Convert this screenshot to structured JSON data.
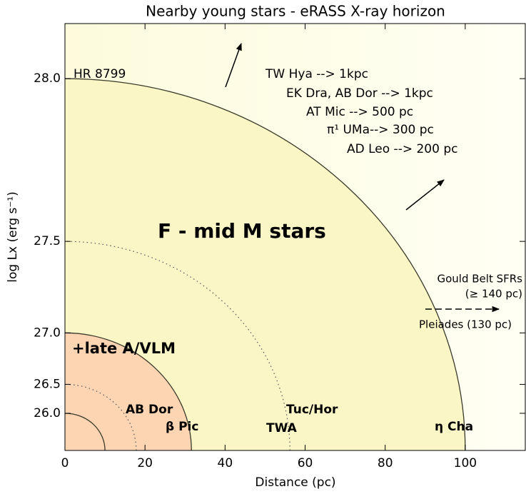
{
  "chart_data": {
    "type": "horizon",
    "title": "Nearby young stars - eRASS X-ray horizon",
    "xlabel": "Distance (pc)",
    "ylabel": "log Lx (erg s⁻¹)",
    "xlim": [
      0,
      115
    ],
    "xticks": [
      0,
      20,
      40,
      60,
      80,
      100
    ],
    "ylim": [
      20,
      28.12
    ],
    "yscale": "sqrt",
    "yticks": [
      {
        "value": 26,
        "label": "26.0"
      },
      26.5,
      {
        "value": 27,
        "label": "27.0"
      },
      27.5,
      {
        "value": 28,
        "label": "28.0"
      }
    ],
    "horizons": [
      {
        "logLx": 28.0,
        "distance": 100,
        "style": "solid",
        "fill": "#fbf6c6"
      },
      {
        "logLx": 27.5,
        "distance": 56.2,
        "style": "dotted"
      },
      {
        "logLx": 27.0,
        "distance": 31.6,
        "style": "solid",
        "fill": "#fdd5b2"
      },
      {
        "logLx": 26.5,
        "distance": 17.8,
        "style": "dotted"
      },
      {
        "logLx": 26.0,
        "distance": 10,
        "style": "solid"
      }
    ],
    "annotations": [
      "HR 8799",
      "TW Hya --> 1kpc",
      "EK Dra, AB Dor --> 1kpc",
      "AT Mic --> 500 pc",
      "π¹ UMa--> 300 pc",
      "AD Leo --> 200 pc",
      "F - mid M stars",
      "+late A/VLM",
      "AB Dor",
      "β Pic",
      "Tuc/Hor",
      "TWA",
      "η Cha",
      "Gould Belt SFRs",
      "(≥ 140 pc)",
      "Pleiades (130 pc)"
    ]
  }
}
